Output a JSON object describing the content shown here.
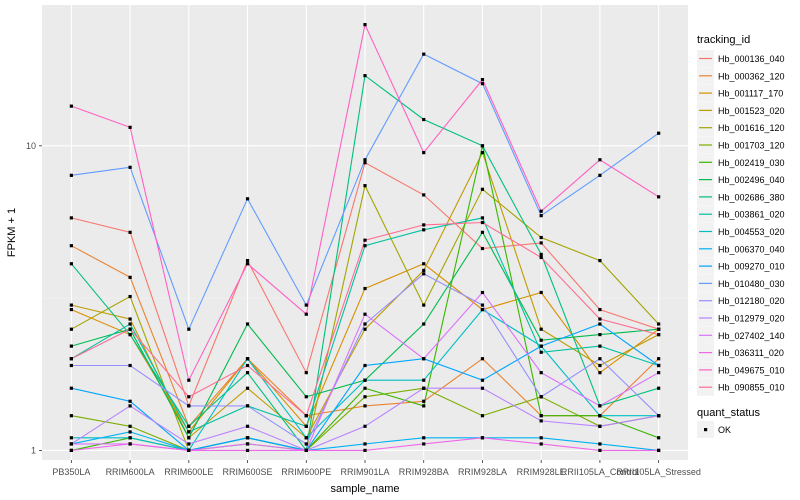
{
  "chart_data": {
    "type": "line",
    "xlabel": "sample_name",
    "ylabel": "FPKM + 1",
    "y_scale": "log10",
    "ylim": [
      0.93,
      29
    ],
    "y_ticks": [
      1,
      10
    ],
    "y_tick_labels": [
      "1",
      "10"
    ],
    "categories": [
      "PB350LA",
      "RRIM600LA",
      "RRIM600LE",
      "RRIM600SE",
      "RRIM600PE",
      "RRIM901LA",
      "RRIM928BA",
      "RRIM928LA",
      "RRIM928LE",
      "RRII105LA_Control",
      "RRII105LA_Stressed"
    ],
    "legend": {
      "title": "tracking_id",
      "status_title": "quant_status",
      "status_label": "OK"
    },
    "series": [
      {
        "name": "Hb_000136_040",
        "color": "#F8766D",
        "values": [
          5.8,
          5.2,
          1.4,
          4.2,
          1.8,
          8.8,
          6.9,
          4.6,
          4.8,
          2.9,
          2.5
        ]
      },
      {
        "name": "Hb_000362_120",
        "color": "#EA8331",
        "values": [
          4.7,
          3.7,
          1.2,
          2.0,
          1.3,
          1.4,
          1.45,
          2.0,
          1.3,
          1.3,
          2.0
        ]
      },
      {
        "name": "Hb_001117_170",
        "color": "#D89000",
        "values": [
          2.9,
          2.4,
          1.15,
          2.0,
          1.2,
          3.4,
          4.1,
          2.9,
          3.3,
          1.8,
          2.5
        ]
      },
      {
        "name": "Hb_001523_020",
        "color": "#C09B00",
        "values": [
          3.0,
          2.7,
          1.1,
          1.6,
          1.1,
          2.5,
          3.9,
          9.5,
          2.5,
          1.9,
          2.4
        ]
      },
      {
        "name": "Hb_001616_120",
        "color": "#A3A500",
        "values": [
          2.5,
          3.2,
          1.0,
          1.1,
          1.0,
          7.4,
          3.0,
          7.2,
          5.0,
          4.2,
          2.6
        ]
      },
      {
        "name": "Hb_001703_120",
        "color": "#7CAE00",
        "values": [
          1.3,
          1.2,
          1.0,
          1.05,
          1.0,
          1.5,
          1.6,
          1.3,
          1.5,
          1.2,
          1.3
        ]
      },
      {
        "name": "Hb_002419_030",
        "color": "#39B600",
        "values": [
          1.0,
          1.1,
          1.0,
          1.1,
          1.0,
          1.6,
          1.4,
          10.0,
          1.3,
          1.3,
          1.1
        ]
      },
      {
        "name": "Hb_002496_040",
        "color": "#00BB4E",
        "values": [
          2.2,
          2.5,
          1.1,
          2.6,
          1.5,
          1.7,
          2.6,
          5.2,
          2.3,
          2.4,
          2.5
        ]
      },
      {
        "name": "Hb_002686_380",
        "color": "#00BF7D",
        "values": [
          4.1,
          2.4,
          1.2,
          1.8,
          1.0,
          17.0,
          12.2,
          10.0,
          4.4,
          1.4,
          1.6
        ]
      },
      {
        "name": "Hb_003861_020",
        "color": "#00C1A3",
        "values": [
          2.0,
          2.6,
          1.15,
          1.4,
          1.2,
          4.7,
          5.3,
          5.8,
          2.1,
          2.2,
          1.9
        ]
      },
      {
        "name": "Hb_004553_020",
        "color": "#00BFC4",
        "values": [
          1.1,
          1.1,
          1.0,
          2.0,
          1.1,
          1.7,
          1.7,
          2.9,
          2.2,
          1.3,
          1.3
        ]
      },
      {
        "name": "Hb_006370_040",
        "color": "#00B2F3",
        "values": [
          1.05,
          1.15,
          1.0,
          1.1,
          1.0,
          1.05,
          1.1,
          1.1,
          1.1,
          1.05,
          1.0
        ]
      },
      {
        "name": "Hb_009270_010",
        "color": "#00A5FF",
        "values": [
          1.6,
          1.45,
          1.0,
          1.1,
          1.0,
          1.9,
          2.0,
          1.7,
          2.2,
          2.6,
          1.9
        ]
      },
      {
        "name": "Hb_010480_030",
        "color": "#619CFF",
        "values": [
          8.0,
          8.5,
          2.5,
          6.7,
          3.0,
          9.0,
          20.0,
          16.0,
          5.9,
          8.0,
          11.0
        ]
      },
      {
        "name": "Hb_012180_020",
        "color": "#9590FF",
        "values": [
          1.9,
          1.9,
          1.4,
          1.4,
          1.05,
          2.6,
          3.8,
          3.0,
          1.5,
          2.0,
          1.3
        ]
      },
      {
        "name": "Hb_012979_020",
        "color": "#B983FF",
        "values": [
          1.05,
          1.4,
          1.05,
          1.2,
          1.0,
          1.2,
          1.6,
          1.6,
          1.25,
          1.2,
          1.3
        ]
      },
      {
        "name": "Hb_027402_140",
        "color": "#DB72FB",
        "values": [
          1.05,
          1.05,
          1.0,
          1.05,
          1.0,
          2.8,
          2.0,
          3.3,
          1.8,
          1.4,
          1.8
        ]
      },
      {
        "name": "Hb_036311_020",
        "color": "#EF67EB",
        "values": [
          1.0,
          1.05,
          1.0,
          1.0,
          1.0,
          1.0,
          1.05,
          1.1,
          1.05,
          1.0,
          1.0
        ]
      },
      {
        "name": "Hb_049675_010",
        "color": "#FF61C3",
        "values": [
          13.5,
          11.5,
          1.7,
          4.1,
          2.8,
          25.0,
          9.5,
          16.5,
          6.1,
          9.0,
          6.8
        ]
      },
      {
        "name": "Hb_090855_010",
        "color": "#FF6C91",
        "values": [
          2.0,
          2.5,
          1.5,
          1.9,
          1.3,
          4.9,
          5.5,
          5.6,
          4.3,
          2.7,
          2.4
        ]
      }
    ]
  }
}
